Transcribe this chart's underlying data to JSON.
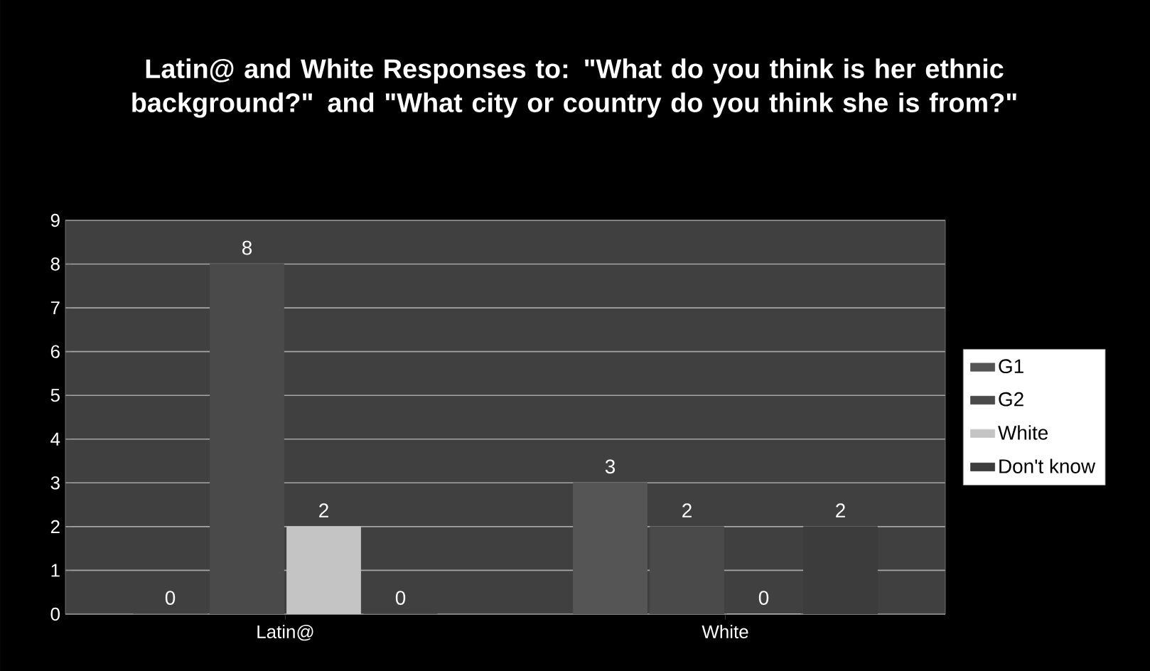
{
  "chart_data": {
    "type": "bar",
    "title": "Latin@ and White Responses to: \"What do you think is her ethnic background?\" and \"What city or country do you think she is from?\"",
    "categories": [
      "Latin@",
      "White"
    ],
    "series": [
      {
        "name": "G1",
        "color": "#555555",
        "values": [
          0,
          3
        ]
      },
      {
        "name": "G2",
        "color": "#4a4a4a",
        "values": [
          8,
          2
        ]
      },
      {
        "name": "White",
        "color": "#c4c4c4",
        "values": [
          2,
          0
        ]
      },
      {
        "name": "Don't know",
        "color": "#3c3c3c",
        "values": [
          0,
          2
        ]
      }
    ],
    "ylim": [
      0,
      9
    ],
    "yticks": [
      0,
      1,
      2,
      3,
      4,
      5,
      6,
      7,
      8,
      9
    ],
    "grid": "y",
    "legend": "right",
    "data_labels": true
  }
}
